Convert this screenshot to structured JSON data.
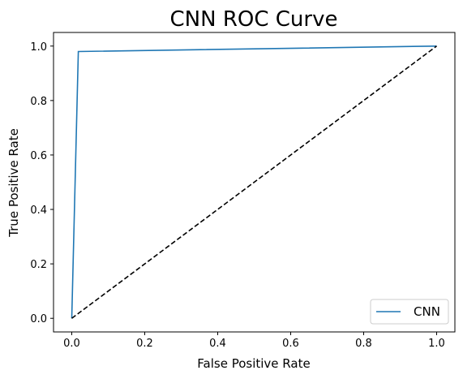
{
  "chart_data": {
    "type": "line",
    "title": "CNN ROC Curve",
    "xlabel": "False Positive Rate",
    "ylabel": "True Positive Rate",
    "xlim": [
      -0.05,
      1.05
    ],
    "ylim": [
      -0.05,
      1.05
    ],
    "xticks": [
      "0.0",
      "0.2",
      "0.4",
      "0.6",
      "0.8",
      "1.0"
    ],
    "yticks": [
      "0.0",
      "0.2",
      "0.4",
      "0.6",
      "0.8",
      "1.0"
    ],
    "grid": false,
    "legend_position": "lower-right",
    "series": [
      {
        "name": "CNN",
        "color": "#1f77b4",
        "style": "solid",
        "x": [
          0.0,
          0.018,
          1.0
        ],
        "y": [
          0.0,
          0.98,
          1.0
        ]
      },
      {
        "color": "#000000",
        "style": "dashed",
        "x": [
          0.0,
          1.0
        ],
        "y": [
          0.0,
          1.0
        ]
      }
    ]
  }
}
